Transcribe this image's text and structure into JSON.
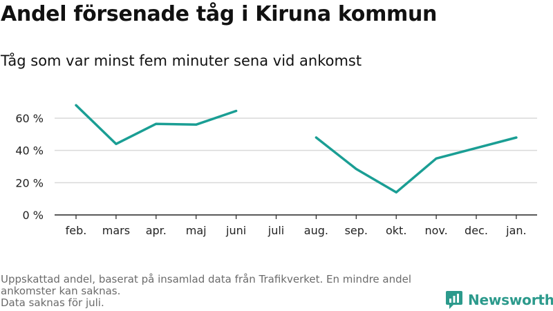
{
  "title": "Andel försenade tåg i Kiruna kommun",
  "subtitle": "Tåg som var minst fem minuter sena vid ankomst",
  "footer": {
    "line1": "Uppskattad andel, baserat på insamlad data från Trafikverket. En mindre andel",
    "line2": "ankomster kan saknas.",
    "line3": "Data saknas för juli."
  },
  "brand": {
    "name": "Newsworthy",
    "logo_icon": "newsworthy-logo-icon",
    "color": "#2c9a8c"
  },
  "colors": {
    "line": "#1a9e94",
    "grid": "#d9d9d9",
    "axis": "#222222"
  },
  "chart_data": {
    "type": "line",
    "categories": [
      "feb.",
      "mars",
      "apr.",
      "maj",
      "juni",
      "juli",
      "aug.",
      "sep.",
      "okt.",
      "nov.",
      "dec.",
      "jan."
    ],
    "series": [
      {
        "values": [
          68,
          44,
          56.5,
          56,
          64.5,
          null,
          48,
          28.5,
          14,
          35,
          41.5,
          48
        ]
      }
    ],
    "y_ticks": [
      0,
      20,
      40,
      60
    ],
    "y_tick_labels": [
      "0 %",
      "20 %",
      "40 %",
      "60 %"
    ],
    "ylim": [
      0,
      70
    ],
    "grid": true,
    "legend": "none"
  }
}
